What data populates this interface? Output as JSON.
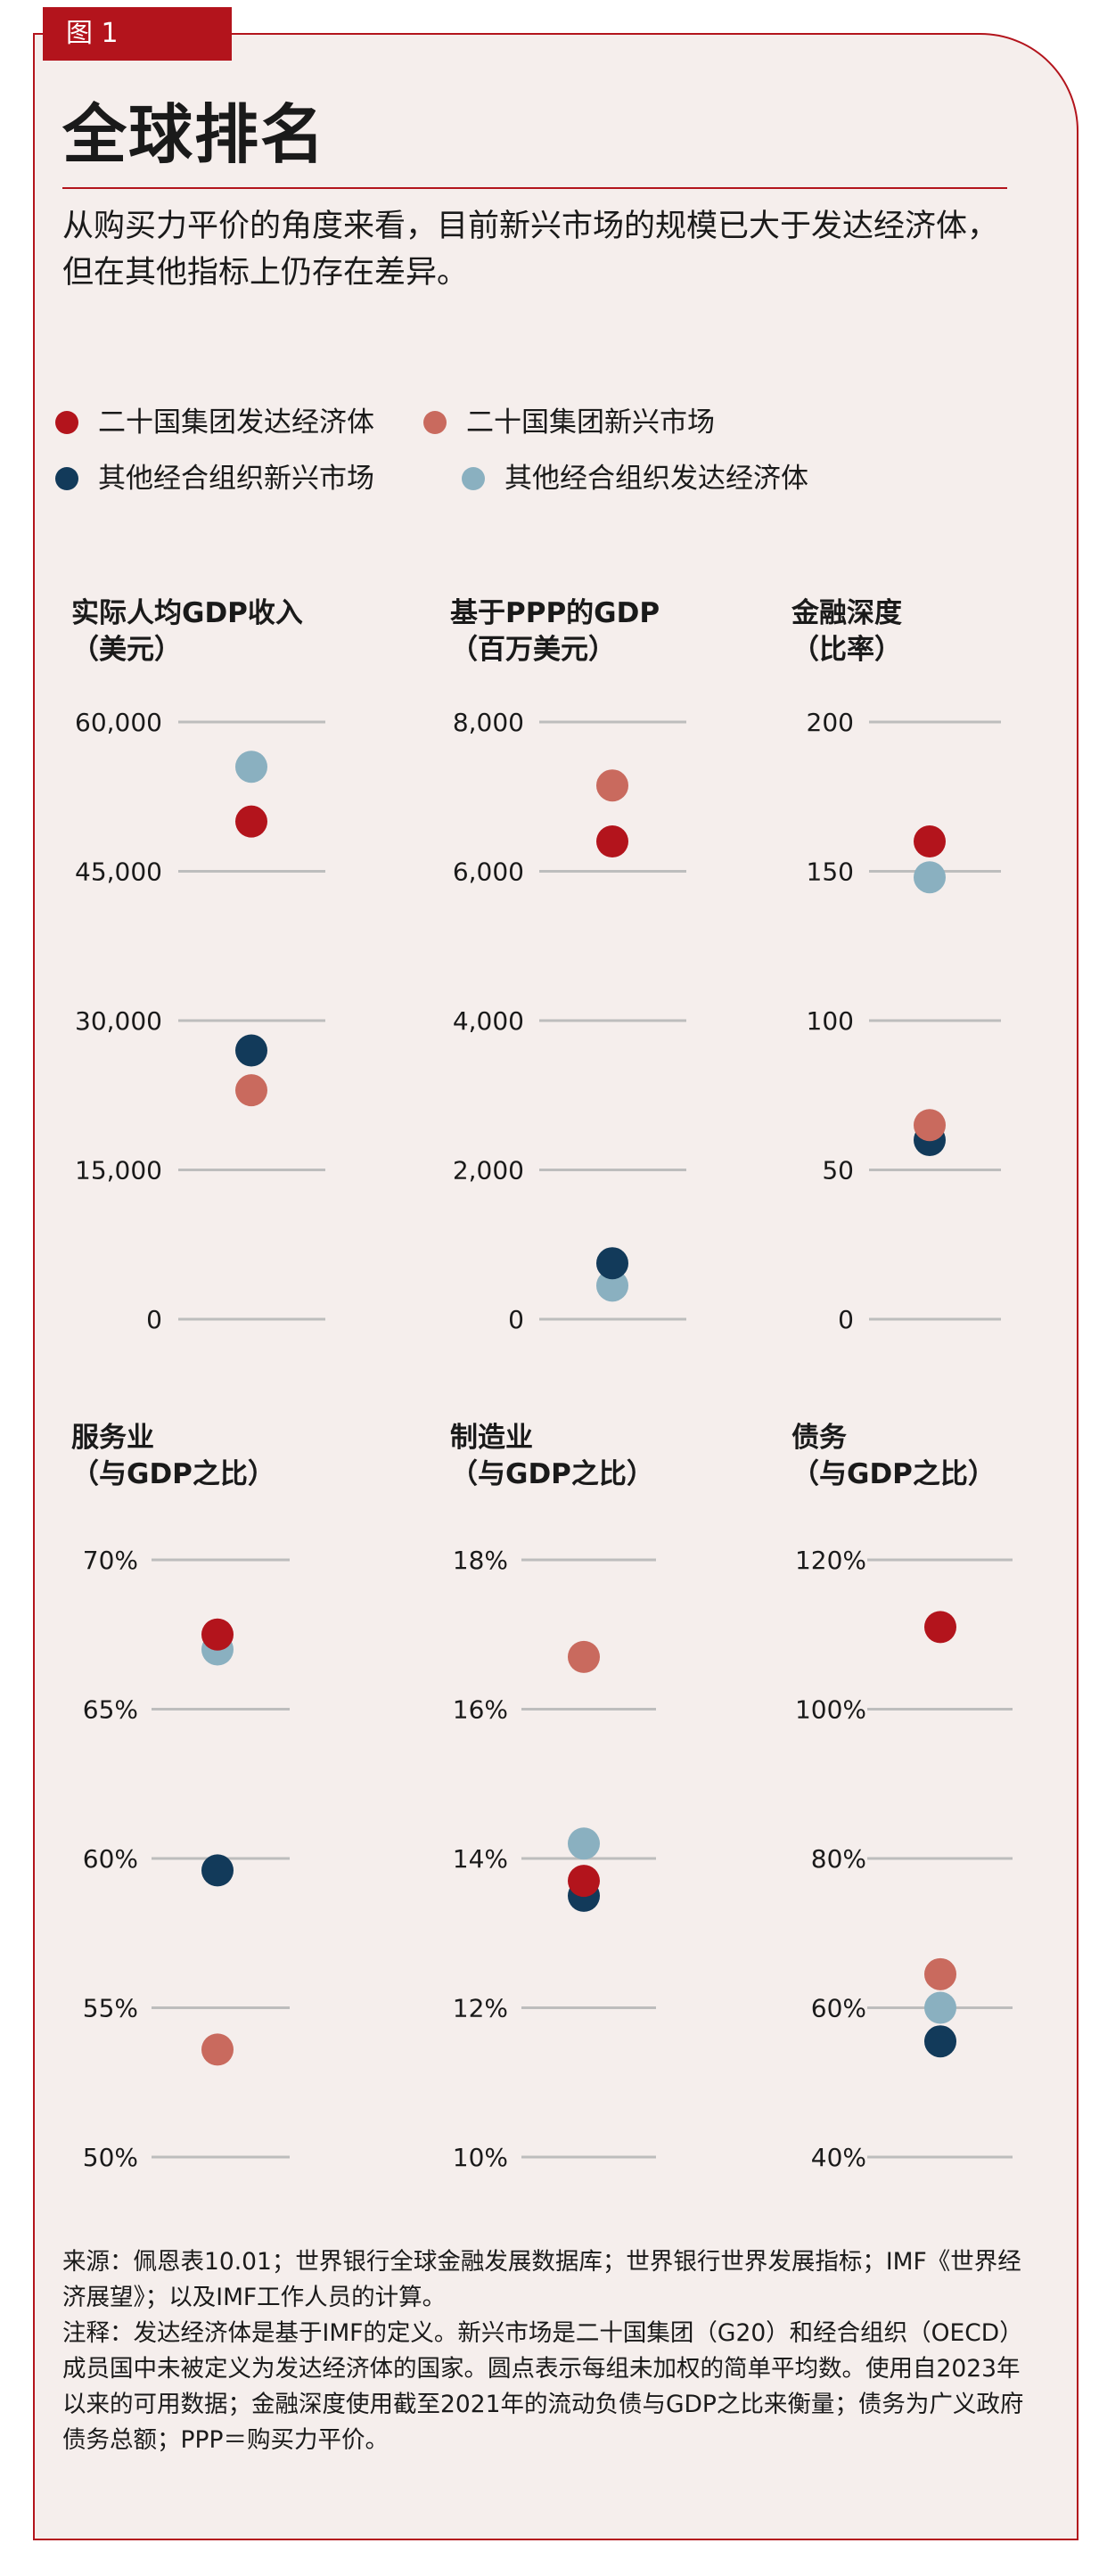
{
  "figure": {
    "tag": "图 1",
    "title": "全球排名",
    "subtitle": "从购买力平价的角度来看，目前新兴市场的规模已大于发达经济体，但在其他指标上仍存在差异。",
    "source": "来源：佩恩表10.01；世界银行全球金融发展数据库；世界银行世界发展指标；IMF《世界经济展望》；以及IMF工作人员的计算。",
    "note": "注释：发达经济体是基于IMF的定义。新兴市场是二十国集团（G20）和经合组织（OECD）成员国中未被定义为发达经济体的国家。圆点表示每组未加权的简单平均数。使用自2023年以来的可用数据；金融深度使用截至2021年的流动负债与GDP之比来衡量；债务为广义政府债务总额；PPP＝购买力平价。"
  },
  "legend": [
    {
      "label": "二十国集团发达经济体",
      "color": "#b3141c"
    },
    {
      "label": "二十国集团新兴市场",
      "color": "#c96a5e"
    },
    {
      "label": "其他经合组织新兴市场",
      "color": "#123a5a"
    },
    {
      "label": "其他经合组织发达经济体",
      "color": "#8ab0c0"
    }
  ],
  "chart_data": [
    {
      "type": "scatter",
      "title": "实际人均GDP收入",
      "unit_label": "（美元）",
      "ylim": [
        0,
        60000
      ],
      "ticks": [
        "0",
        "15,000",
        "30,000",
        "45,000",
        "60,000"
      ],
      "series": [
        {
          "name": "二十国集团发达经济体",
          "value": 50000
        },
        {
          "name": "二十国集团新兴市场",
          "value": 23000
        },
        {
          "name": "其他经合组织新兴市场",
          "value": 27000
        },
        {
          "name": "其他经合组织发达经济体",
          "value": 55500
        }
      ]
    },
    {
      "type": "scatter",
      "title": "基于PPP的GDP",
      "unit_label": "（百万美元）",
      "ylim": [
        0,
        8000
      ],
      "ticks": [
        "0",
        "2,000",
        "4,000",
        "6,000",
        "8,000"
      ],
      "series": [
        {
          "name": "二十国集团发达经济体",
          "value": 6400
        },
        {
          "name": "二十国集团新兴市场",
          "value": 7150
        },
        {
          "name": "其他经合组织新兴市场",
          "value": 750
        },
        {
          "name": "其他经合组织发达经济体",
          "value": 450
        }
      ]
    },
    {
      "type": "scatter",
      "title": "金融深度",
      "unit_label": "（比率）",
      "ylim": [
        0,
        200
      ],
      "ticks": [
        "0",
        "50",
        "100",
        "150",
        "200"
      ],
      "series": [
        {
          "name": "二十国集团发达经济体",
          "value": 160
        },
        {
          "name": "二十国集团新兴市场",
          "value": 65
        },
        {
          "name": "其他经合组织新兴市场",
          "value": 60
        },
        {
          "name": "其他经合组织发达经济体",
          "value": 148
        }
      ]
    },
    {
      "type": "scatter",
      "title": "服务业",
      "unit_label": "（与GDP之比）",
      "ylim": [
        50,
        70
      ],
      "ticks": [
        "50%",
        "55%",
        "60%",
        "65%",
        "70%"
      ],
      "series": [
        {
          "name": "二十国集团发达经济体",
          "value": 67.5
        },
        {
          "name": "二十国集团新兴市场",
          "value": 53.6
        },
        {
          "name": "其他经合组织新兴市场",
          "value": 59.6
        },
        {
          "name": "其他经合组织发达经济体",
          "value": 67.0
        }
      ]
    },
    {
      "type": "scatter",
      "title": "制造业",
      "unit_label": "（与GDP之比）",
      "ylim": [
        10,
        18
      ],
      "ticks": [
        "10%",
        "12%",
        "14%",
        "16%",
        "18%"
      ],
      "series": [
        {
          "name": "二十国集团发达经济体",
          "value": 13.7
        },
        {
          "name": "二十国集团新兴市场",
          "value": 16.7
        },
        {
          "name": "其他经合组织新兴市场",
          "value": 13.5
        },
        {
          "name": "其他经合组织发达经济体",
          "value": 14.2
        }
      ]
    },
    {
      "type": "scatter",
      "title": "债务",
      "unit_label": "（与GDP之比）",
      "ylim": [
        40,
        120
      ],
      "ticks": [
        "40%",
        "60%",
        "80%",
        "100%",
        "120%"
      ],
      "series": [
        {
          "name": "二十国集团发达经济体",
          "value": 111
        },
        {
          "name": "二十国集团新兴市场",
          "value": 64.5
        },
        {
          "name": "其他经合组织新兴市场",
          "value": 55.5
        },
        {
          "name": "其他经合组织发达经济体",
          "value": 60
        }
      ]
    }
  ]
}
